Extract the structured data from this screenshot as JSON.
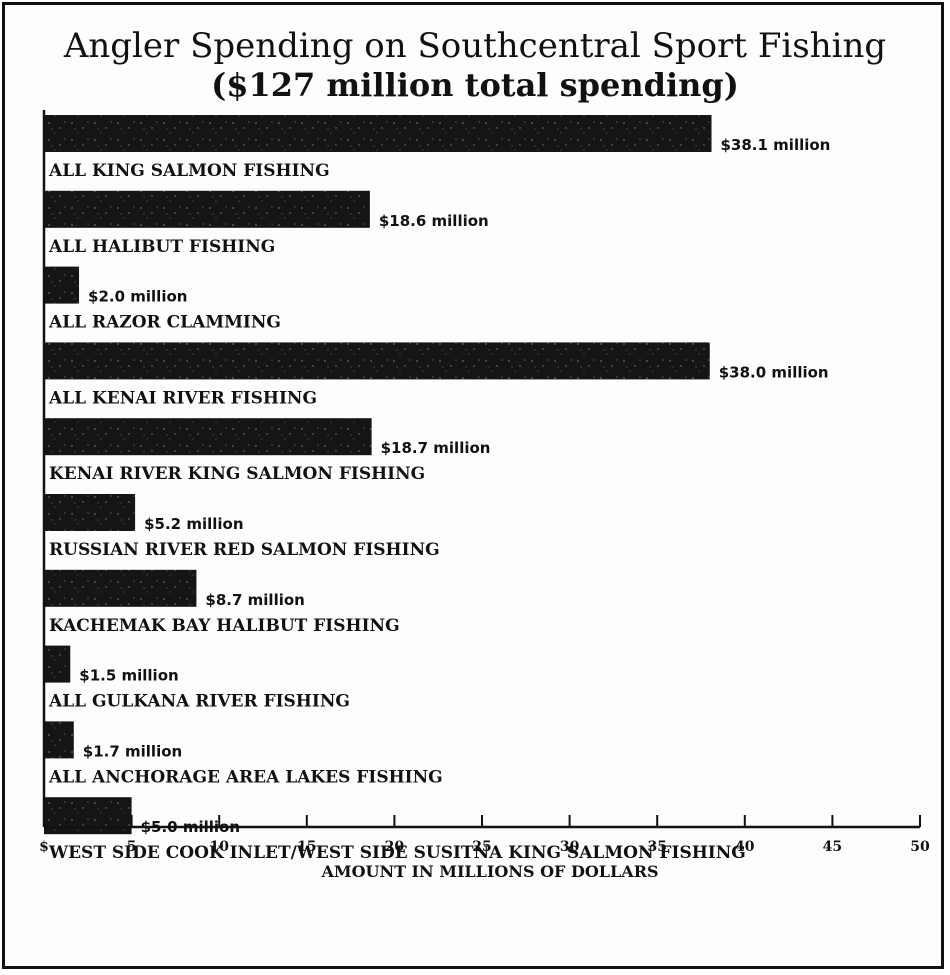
{
  "chart_data": {
    "type": "bar",
    "orientation": "horizontal",
    "title": "Angler Spending on Southcentral Sport Fishing",
    "subtitle": "($127 million total spending)",
    "xlabel": "AMOUNT IN MILLIONS OF DOLLARS",
    "ylabel": "",
    "xlim": [
      0,
      50
    ],
    "ticks": [
      {
        "value": 0,
        "label": "$"
      },
      {
        "value": 5,
        "label": "5"
      },
      {
        "value": 10,
        "label": "10"
      },
      {
        "value": 15,
        "label": "15"
      },
      {
        "value": 20,
        "label": "20"
      },
      {
        "value": 25,
        "label": "25"
      },
      {
        "value": 30,
        "label": "30"
      },
      {
        "value": 35,
        "label": "35"
      },
      {
        "value": 40,
        "label": "40"
      },
      {
        "value": 45,
        "label": "45"
      },
      {
        "value": 50,
        "label": "50"
      }
    ],
    "categories": [
      "ALL KING SALMON FISHING",
      "ALL HALIBUT FISHING",
      "ALL RAZOR CLAMMING",
      "ALL KENAI RIVER FISHING",
      "KENAI RIVER KING SALMON FISHING",
      "RUSSIAN RIVER RED SALMON FISHING",
      "KACHEMAK BAY HALIBUT FISHING",
      "ALL GULKANA RIVER FISHING",
      "ALL ANCHORAGE AREA LAKES FISHING",
      "WEST SIDE COOK INLET/WEST SIDE SUSITNA KING SALMON FISHING"
    ],
    "values": [
      38.1,
      18.6,
      2.0,
      38.0,
      18.7,
      5.2,
      8.7,
      1.5,
      1.7,
      5.0
    ],
    "data_labels": [
      "$38.1 million",
      "$18.6 million",
      "$2.0 million",
      "$38.0 million",
      "$18.7 million",
      "$5.2 million",
      "$8.7 million",
      "$1.5 million",
      "$1.7 million",
      "$5.0 million"
    ],
    "grid": false,
    "bar_color": "#151515"
  }
}
